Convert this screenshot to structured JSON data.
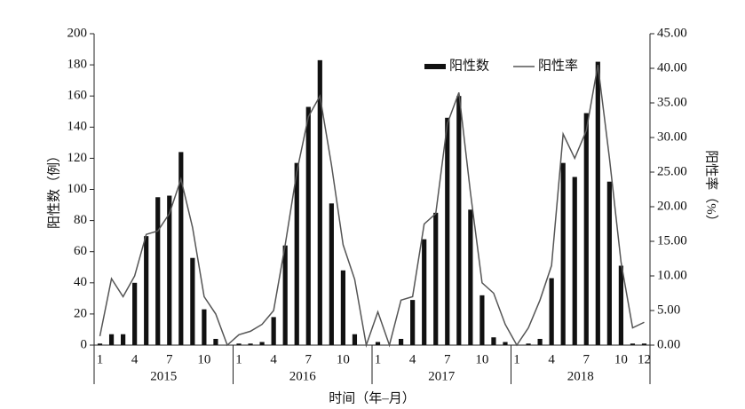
{
  "chart_data": {
    "type": "bar_line",
    "x_label": "时间（年–月）",
    "y_label": "阳性数（例）",
    "y2_label": "阳性率（%）",
    "categories": [
      "1",
      null,
      null,
      "4",
      null,
      null,
      "7",
      null,
      null,
      "10",
      null,
      null,
      "1",
      null,
      null,
      "4",
      null,
      null,
      "7",
      null,
      null,
      "10",
      null,
      null,
      "1",
      null,
      null,
      "4",
      null,
      null,
      "7",
      null,
      null,
      "10",
      null,
      null,
      "1",
      null,
      null,
      "4",
      null,
      null,
      "7",
      null,
      null,
      "10",
      null,
      "12"
    ],
    "year_groups": [
      "2015",
      "2016",
      "2017",
      "2018"
    ],
    "series": [
      {
        "name": "阳性数",
        "type": "bar",
        "color": "#111111",
        "values": [
          1,
          7,
          7,
          40,
          70,
          95,
          96,
          124,
          56,
          23,
          4,
          0,
          1,
          1,
          2,
          18,
          64,
          117,
          153,
          183,
          91,
          48,
          7,
          0,
          2,
          0,
          4,
          29,
          68,
          85,
          146,
          160,
          87,
          32,
          5,
          2,
          0,
          1,
          4,
          43,
          117,
          108,
          149,
          182,
          105,
          51,
          1,
          1
        ]
      },
      {
        "name": "阳性率",
        "type": "line",
        "axis": "y2",
        "color": "#555555",
        "values": [
          1.3,
          9.6,
          7,
          10,
          16,
          16.5,
          19,
          24,
          17,
          7,
          4.5,
          0,
          1.5,
          2,
          3,
          5,
          14.5,
          25,
          33,
          36,
          26,
          14.5,
          9.5,
          0,
          4.8,
          0,
          6.5,
          7,
          17.5,
          19,
          32,
          36.5,
          22,
          9,
          7.5,
          3,
          0,
          2.5,
          6.5,
          11.5,
          30.5,
          27,
          31,
          40.5,
          27,
          12,
          2.5,
          3.3
        ]
      }
    ],
    "ylim": [
      0,
      200
    ],
    "yticks": [
      0,
      20,
      40,
      60,
      80,
      100,
      120,
      140,
      160,
      180,
      200
    ],
    "y2lim": [
      0,
      45
    ],
    "y2ticks": [
      {
        "value": 0,
        "label": "0.00"
      },
      {
        "value": 5,
        "label": "5.00"
      },
      {
        "value": 10,
        "label": "10.00"
      },
      {
        "value": 15,
        "label": "15.00"
      },
      {
        "value": 20,
        "label": "20.00"
      },
      {
        "value": 25,
        "label": "25.00"
      },
      {
        "value": 30,
        "label": "30.00"
      },
      {
        "value": 35,
        "label": "35.00"
      },
      {
        "value": 40,
        "label": "40.00"
      },
      {
        "value": 45,
        "label": "45.00"
      }
    ],
    "grid": false,
    "legend": "top-right"
  }
}
